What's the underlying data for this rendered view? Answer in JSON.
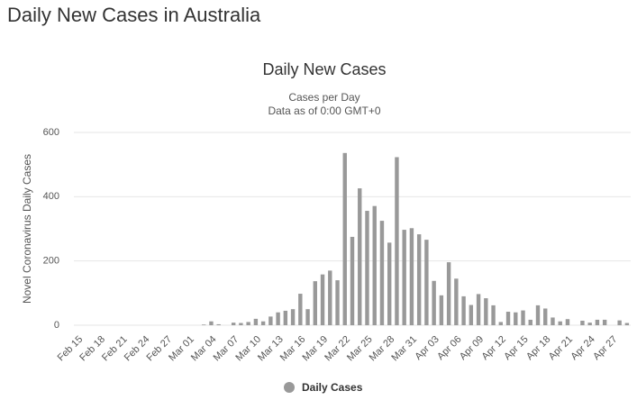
{
  "page_title": "Daily New Cases in Australia",
  "chart_data": {
    "type": "bar",
    "title": "Daily New Cases",
    "subtitle": [
      "Cases per Day",
      "Data as of 0:00 GMT+0"
    ],
    "y_label": "Novel Coronavirus Daily Cases",
    "categories": [
      "Feb 15",
      null,
      null,
      "Feb 18",
      null,
      null,
      "Feb 21",
      null,
      null,
      "Feb 24",
      null,
      null,
      "Feb 27",
      null,
      null,
      "Mar 01",
      null,
      null,
      "Mar 04",
      null,
      null,
      "Mar 07",
      null,
      null,
      "Mar 10",
      null,
      null,
      "Mar 13",
      null,
      null,
      "Mar 16",
      null,
      null,
      "Mar 19",
      null,
      null,
      "Mar 22",
      null,
      null,
      "Mar 25",
      null,
      null,
      "Mar 28",
      null,
      null,
      "Mar 31",
      null,
      null,
      "Apr 03",
      null,
      null,
      "Apr 06",
      null,
      null,
      "Apr 09",
      null,
      null,
      "Apr 12",
      null,
      null,
      "Apr 15",
      null,
      null,
      "Apr 18",
      null,
      null,
      "Apr 21",
      null,
      null,
      "Apr 24",
      null,
      null,
      "Apr 27",
      null,
      null
    ],
    "series": [
      {
        "name": "Daily Cases",
        "color": "#999999",
        "values": [
          0,
          0,
          0,
          0,
          0,
          0,
          0,
          0,
          0,
          0,
          0,
          0,
          0,
          0,
          0,
          0,
          0,
          2,
          12,
          3,
          0,
          8,
          7,
          10,
          20,
          12,
          27,
          40,
          45,
          50,
          98,
          50,
          137,
          158,
          170,
          140,
          536,
          275,
          426,
          356,
          371,
          325,
          257,
          523,
          297,
          302,
          283,
          266,
          138,
          93,
          196,
          145,
          90,
          63,
          97,
          84,
          62,
          10,
          42,
          40,
          46,
          17,
          62,
          52,
          24,
          12,
          19,
          0,
          14,
          8,
          17,
          17,
          0,
          15,
          7
        ]
      }
    ],
    "ylim": [
      0,
      600
    ],
    "yticks": [
      0,
      200,
      400,
      600
    ],
    "grid": true,
    "legend": "bottom"
  }
}
